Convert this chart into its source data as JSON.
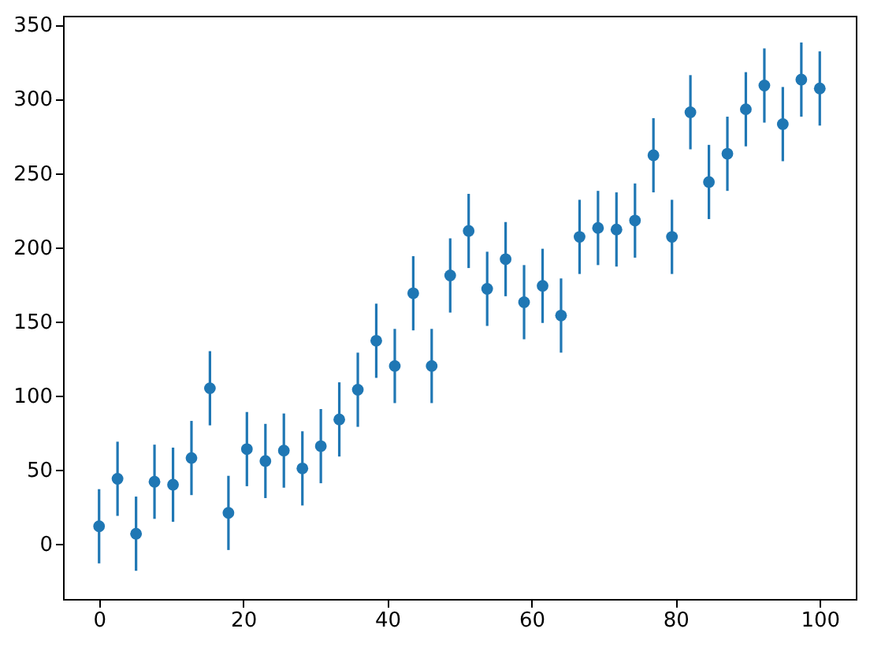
{
  "chart_data": {
    "type": "scatter",
    "x": [
      0,
      2.56,
      5.13,
      7.69,
      10.26,
      12.82,
      15.38,
      17.95,
      20.51,
      23.08,
      25.64,
      28.21,
      30.77,
      33.33,
      35.9,
      38.46,
      41.03,
      43.59,
      46.15,
      48.72,
      51.28,
      53.85,
      56.41,
      58.97,
      61.54,
      64.1,
      66.67,
      69.23,
      71.79,
      74.36,
      76.92,
      79.49,
      82.05,
      84.62,
      87.18,
      89.74,
      92.31,
      94.87,
      97.44,
      100
    ],
    "series": [
      {
        "color": "#1f77b4",
        "values": [
          12,
          44,
          7,
          42,
          40,
          58,
          105,
          21,
          64,
          56,
          63,
          51,
          66,
          84,
          104,
          137,
          120,
          169,
          120,
          181,
          211,
          172,
          192,
          163,
          174,
          154,
          207,
          213,
          212,
          218,
          262,
          207,
          291,
          244,
          263,
          293,
          309,
          283,
          313,
          307
        ],
        "errors": [
          25,
          25,
          25,
          25,
          25,
          25,
          25,
          25,
          25,
          25,
          25,
          25,
          25,
          25,
          25,
          25,
          25,
          25,
          25,
          25,
          25,
          25,
          25,
          25,
          25,
          25,
          25,
          25,
          25,
          25,
          25,
          25,
          25,
          25,
          25,
          25,
          25,
          25,
          25,
          25
        ]
      }
    ],
    "xlim": [
      -5,
      105
    ],
    "ylim": [
      -37,
      356
    ],
    "xticks": [
      0,
      20,
      40,
      60,
      80,
      100
    ],
    "yticks": [
      0,
      50,
      100,
      150,
      200,
      250,
      300,
      350
    ],
    "marker": "circle",
    "grid": false
  }
}
